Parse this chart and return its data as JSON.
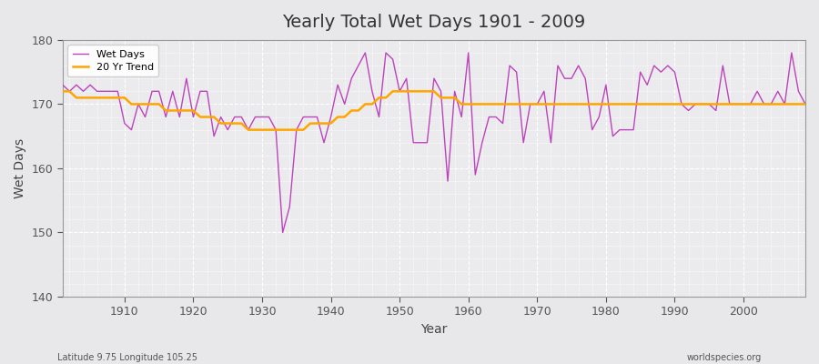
{
  "title": "Yearly Total Wet Days 1901 - 2009",
  "xlabel": "Year",
  "ylabel": "Wet Days",
  "subtitle_left": "Latitude 9.75 Longitude 105.25",
  "subtitle_right": "worldspecies.org",
  "wet_days_color": "#BB44BB",
  "trend_color": "#FFA500",
  "bg_color": "#E8E8EB",
  "plot_bg_color": "#EBEBEE",
  "ylim": [
    140,
    180
  ],
  "xlim": [
    1901,
    2009
  ],
  "yticks": [
    140,
    150,
    160,
    170,
    180
  ],
  "xticks": [
    1910,
    1920,
    1930,
    1940,
    1950,
    1960,
    1970,
    1980,
    1990,
    2000
  ],
  "years": [
    1901,
    1902,
    1903,
    1904,
    1905,
    1906,
    1907,
    1908,
    1909,
    1910,
    1911,
    1912,
    1913,
    1914,
    1915,
    1916,
    1917,
    1918,
    1919,
    1920,
    1921,
    1922,
    1923,
    1924,
    1925,
    1926,
    1927,
    1928,
    1929,
    1930,
    1931,
    1932,
    1933,
    1934,
    1935,
    1936,
    1937,
    1938,
    1939,
    1940,
    1941,
    1942,
    1943,
    1944,
    1945,
    1946,
    1947,
    1948,
    1949,
    1950,
    1951,
    1952,
    1953,
    1954,
    1955,
    1956,
    1957,
    1958,
    1959,
    1960,
    1961,
    1962,
    1963,
    1964,
    1965,
    1966,
    1967,
    1968,
    1969,
    1970,
    1971,
    1972,
    1973,
    1974,
    1975,
    1976,
    1977,
    1978,
    1979,
    1980,
    1981,
    1982,
    1983,
    1984,
    1985,
    1986,
    1987,
    1988,
    1989,
    1990,
    1991,
    1992,
    1993,
    1994,
    1995,
    1996,
    1997,
    1998,
    1999,
    2000,
    2001,
    2002,
    2003,
    2004,
    2005,
    2006,
    2007,
    2008,
    2009
  ],
  "wet_days": [
    173,
    172,
    173,
    172,
    173,
    172,
    172,
    172,
    172,
    167,
    166,
    170,
    168,
    172,
    172,
    168,
    172,
    168,
    174,
    168,
    172,
    172,
    165,
    168,
    166,
    168,
    168,
    166,
    168,
    168,
    168,
    166,
    150,
    154,
    166,
    168,
    168,
    168,
    164,
    168,
    173,
    170,
    174,
    176,
    178,
    172,
    168,
    178,
    177,
    172,
    174,
    164,
    164,
    164,
    174,
    172,
    158,
    172,
    168,
    178,
    159,
    164,
    168,
    168,
    167,
    176,
    175,
    164,
    170,
    170,
    172,
    164,
    176,
    174,
    174,
    176,
    174,
    166,
    168,
    173,
    165,
    166,
    166,
    166,
    175,
    173,
    176,
    175,
    176,
    175,
    170,
    169,
    170,
    170,
    170,
    169,
    176,
    170,
    170,
    170,
    170,
    172,
    170,
    170,
    172,
    170,
    178,
    172,
    170
  ],
  "trend": [
    172,
    172,
    171,
    171,
    171,
    171,
    171,
    171,
    171,
    171,
    170,
    170,
    170,
    170,
    170,
    169,
    169,
    169,
    169,
    169,
    168,
    168,
    168,
    167,
    167,
    167,
    167,
    166,
    166,
    166,
    166,
    166,
    166,
    166,
    166,
    166,
    167,
    167,
    167,
    167,
    168,
    168,
    169,
    169,
    170,
    170,
    171,
    171,
    172,
    172,
    172,
    172,
    172,
    172,
    172,
    171,
    171,
    171,
    170,
    170,
    170,
    170,
    170,
    170,
    170,
    170,
    170,
    170,
    170,
    170,
    170,
    170,
    170,
    170,
    170,
    170,
    170,
    170,
    170,
    170,
    170,
    170,
    170,
    170,
    170,
    170,
    170,
    170,
    170,
    170,
    170,
    170,
    170,
    170,
    170,
    170,
    170,
    170,
    170,
    170,
    170,
    170,
    170,
    170,
    170,
    170,
    170,
    170,
    170
  ]
}
